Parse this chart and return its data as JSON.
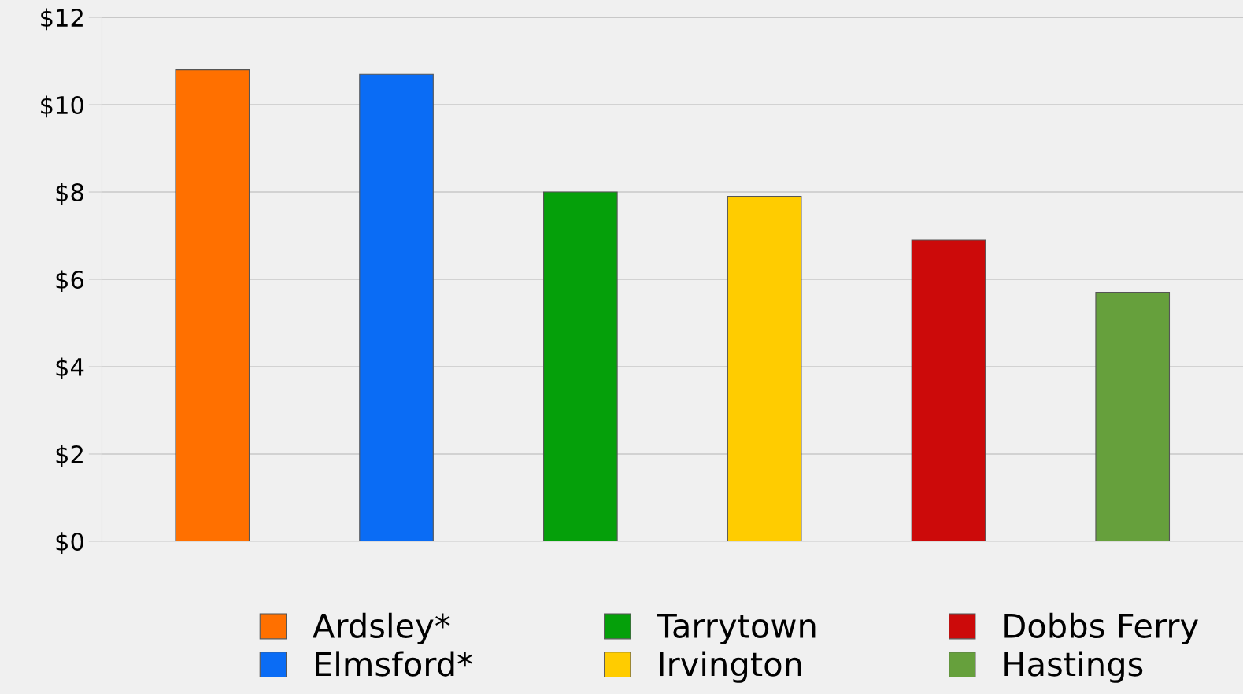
{
  "chart_data": {
    "type": "bar",
    "categories": [
      null,
      null,
      null,
      null,
      null,
      null
    ],
    "series": [
      {
        "name": "Ardsley*",
        "color": "#ff7000",
        "values": [
          10.8,
          null,
          null,
          null,
          null,
          null
        ]
      },
      {
        "name": "Elmsford*",
        "color": "#0a6cf5",
        "values": [
          null,
          10.7,
          null,
          null,
          null,
          null
        ]
      },
      {
        "name": "Tarrytown",
        "color": "#05a00a",
        "values": [
          null,
          null,
          8.0,
          null,
          null,
          null
        ]
      },
      {
        "name": "Irvington",
        "color": "#ffcc00",
        "values": [
          null,
          null,
          null,
          7.9,
          null,
          null
        ]
      },
      {
        "name": "Dobbs Ferry",
        "color": "#cc0a0a",
        "values": [
          null,
          null,
          null,
          null,
          6.9,
          null
        ]
      },
      {
        "name": "Hastings",
        "color": "#66a03c",
        "values": [
          null,
          null,
          null,
          null,
          null,
          5.7
        ]
      }
    ],
    "ylim": [
      0,
      12
    ],
    "yticks": [
      {
        "value": 0,
        "label": "$0"
      },
      {
        "value": 2,
        "label": "$2"
      },
      {
        "value": 4,
        "label": "$4"
      },
      {
        "value": 6,
        "label": "$6"
      },
      {
        "value": 8,
        "label": "$8"
      },
      {
        "value": 10,
        "label": "$10"
      },
      {
        "value": 12,
        "label": "$12"
      }
    ],
    "grid": "y",
    "legend": "bottom"
  }
}
